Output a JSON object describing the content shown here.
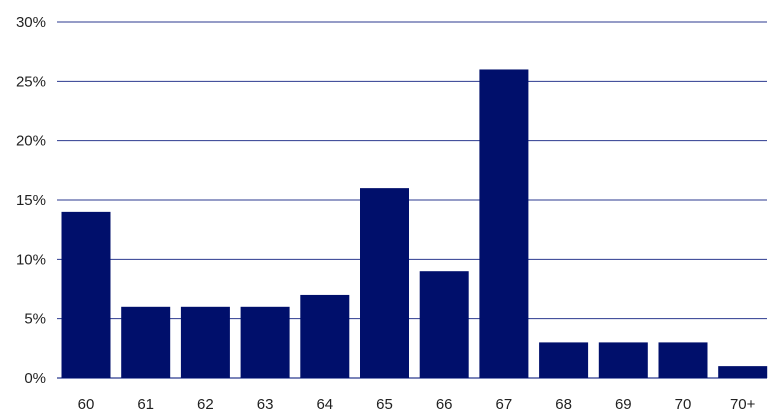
{
  "chart_data": {
    "type": "bar",
    "categories": [
      "60",
      "61",
      "62",
      "63",
      "64",
      "65",
      "66",
      "67",
      "68",
      "69",
      "70",
      "70+"
    ],
    "values": [
      14,
      6,
      6,
      6,
      7,
      16,
      9,
      26,
      3,
      3,
      3,
      1
    ],
    "ylim": [
      0,
      30
    ],
    "yticks": [
      0,
      5,
      10,
      15,
      20,
      25,
      30
    ],
    "ytick_labels": [
      "0%",
      "5%",
      "10%",
      "15%",
      "20%",
      "25%",
      "30%"
    ],
    "grid": true,
    "legend": "none",
    "colors": {
      "bar": "#000f6b",
      "grid": "#2b3a8f",
      "text": "#222222"
    }
  }
}
